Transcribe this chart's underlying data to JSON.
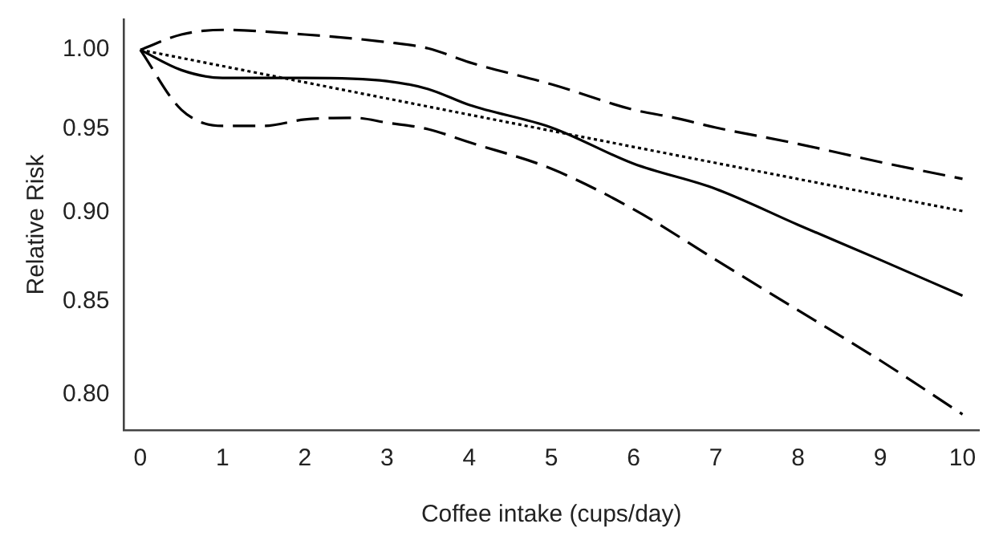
{
  "chart_data": {
    "type": "line",
    "xlabel": "Coffee intake (cups/day)",
    "ylabel": "Relative Risk",
    "log": "y",
    "legend": false,
    "marker": "none",
    "xlim": [
      -0.2,
      10.2
    ],
    "xticks": [
      0,
      1,
      2,
      3,
      4,
      5,
      6,
      7,
      8,
      9,
      10
    ],
    "ylim": [
      0.782,
      1.02
    ],
    "yticks": [
      {
        "value": 0.8,
        "label": "0.80"
      },
      {
        "value": 0.85,
        "label": "0.85"
      },
      {
        "value": 0.9,
        "label": "0.90"
      },
      {
        "value": 0.95,
        "label": "0.95"
      },
      {
        "value": 1.0,
        "label": "1.00"
      }
    ],
    "series": [
      {
        "color": "#000000",
        "line_style": "solid",
        "x": [
          0,
          0.5,
          1,
          2,
          3,
          3.5,
          4,
          5,
          6,
          7,
          8,
          9,
          10
        ],
        "values": [
          1.0,
          0.987,
          0.982,
          0.982,
          0.98,
          0.975,
          0.965,
          0.951,
          0.929,
          0.914,
          0.893,
          0.873,
          0.853
        ]
      },
      {
        "color": "#000000",
        "line_style": "dashed",
        "x": [
          0,
          0.5,
          1,
          2,
          3,
          3.5,
          4,
          5,
          6,
          6.5,
          7,
          8,
          9,
          10
        ],
        "values": [
          1.0,
          1.01,
          1.013,
          1.01,
          1.005,
          1.001,
          0.992,
          0.978,
          0.962,
          0.957,
          0.951,
          0.941,
          0.93,
          0.92
        ]
      },
      {
        "color": "#000000",
        "line_style": "dashed",
        "x": [
          0,
          0.5,
          1,
          1.5,
          2,
          2.6,
          3,
          3.5,
          4,
          5,
          6,
          7,
          8,
          9,
          10
        ],
        "values": [
          1.0,
          0.962,
          0.952,
          0.952,
          0.956,
          0.957,
          0.954,
          0.95,
          0.942,
          0.926,
          0.902,
          0.873,
          0.845,
          0.818,
          0.79
        ]
      },
      {
        "color": "#000000",
        "line_style": "dotted",
        "x": [
          0,
          5,
          10
        ],
        "values": [
          1.0,
          0.949,
          0.901
        ]
      }
    ]
  }
}
